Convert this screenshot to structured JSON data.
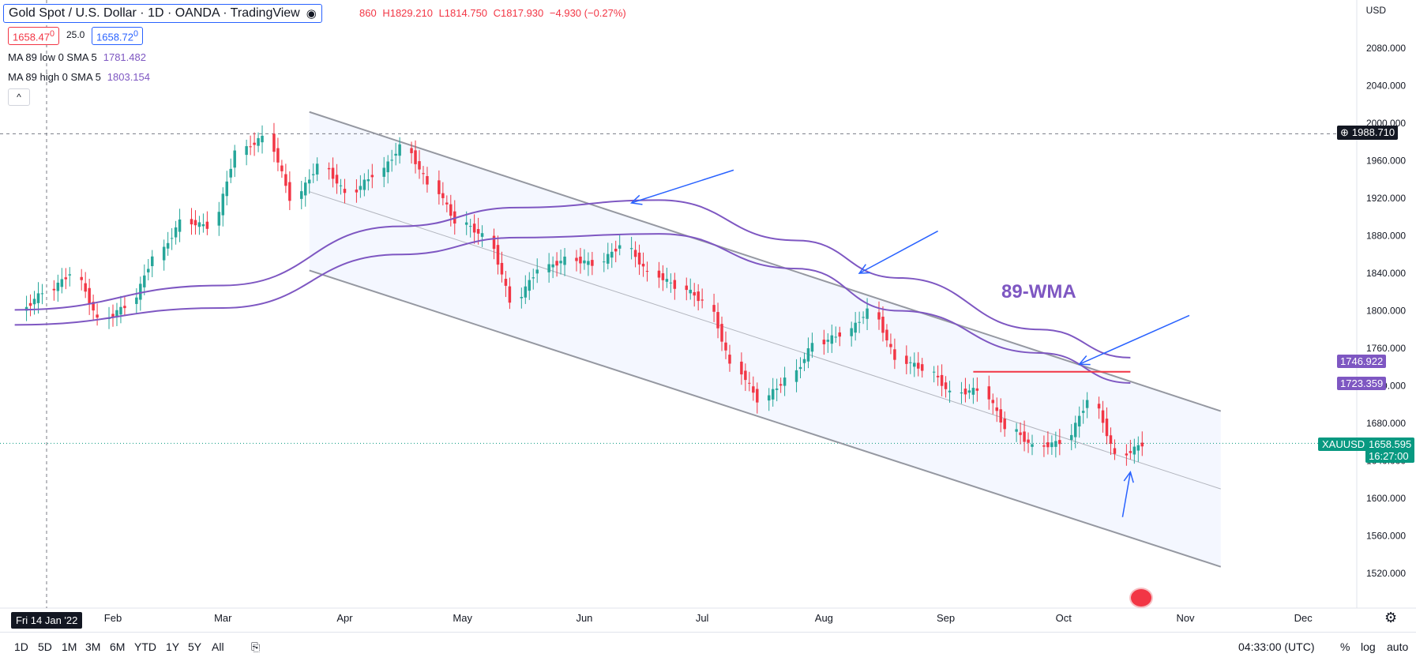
{
  "header": {
    "title": "Gold Spot / U.S. Dollar · 1D · OANDA · TradingView",
    "ohlc_prefix": "860",
    "high": "H1829.210",
    "low": "L1814.750",
    "close": "C1817.930",
    "change": "−4.930 (−0.27%)",
    "sell_price": "1658.47",
    "sell_sup": "0",
    "spread": "25.0",
    "buy_price": "1658.72",
    "buy_sup": "0"
  },
  "legend": {
    "ma_low_label": "MA 89 low 0 SMA 5",
    "ma_low_value": "1781.482",
    "ma_high_label": "MA 89 high 0 SMA 5",
    "ma_high_value": "1803.154"
  },
  "annotations": {
    "wma_text": "89-WMA"
  },
  "axis": {
    "currency": "USD",
    "crosshair_date": "Fri 14 Jan '22",
    "crosshair_price": "1988.710",
    "ma_high_tag": "1746.922",
    "ma_low_tag": "1723.359",
    "symbol_tag": "XAUUSD",
    "last_price": "1658.595",
    "countdown": "16:27:00"
  },
  "bottom": {
    "timeframes": [
      "1D",
      "5D",
      "1M",
      "3M",
      "6M",
      "YTD",
      "1Y",
      "5Y",
      "All"
    ],
    "time": "04:33:00 (UTC)",
    "pct": "%",
    "log": "log",
    "auto": "auto"
  },
  "colors": {
    "up": "#26a69a",
    "down": "#f23645",
    "ma": "#7e57c2",
    "channel": "#9598a1",
    "arrow": "#2962ff"
  },
  "chart_data": {
    "type": "candlestick",
    "title": "Gold Spot / U.S. Dollar · 1D · OANDA",
    "y_ticks": [
      1520,
      1560,
      1600,
      1640,
      1680,
      1720,
      1760,
      1800,
      1840,
      1880,
      1920,
      1960,
      2000,
      2040,
      2080
    ],
    "ylim": [
      1500,
      2110
    ],
    "x_ticks": [
      "Feb",
      "Mar",
      "Apr",
      "May",
      "Jun",
      "Jul",
      "Aug",
      "Sep",
      "Oct",
      "Nov",
      "Dec"
    ],
    "xlim": [
      "2022-01-07",
      "2022-12-28"
    ],
    "candles_weekly_close": [
      [
        "2022-01-10",
        1800,
        1820
      ],
      [
        "2022-01-17",
        1820,
        1840
      ],
      [
        "2022-01-24",
        1840,
        1790
      ],
      [
        "2022-01-31",
        1790,
        1805
      ],
      [
        "2022-02-07",
        1805,
        1858
      ],
      [
        "2022-02-14",
        1858,
        1895
      ],
      [
        "2022-02-21",
        1895,
        1890
      ],
      [
        "2022-02-28",
        1890,
        1970
      ],
      [
        "2022-03-07",
        1970,
        1985
      ],
      [
        "2022-03-14",
        1985,
        1920
      ],
      [
        "2022-03-21",
        1920,
        1955
      ],
      [
        "2022-03-28",
        1955,
        1925
      ],
      [
        "2022-04-04",
        1925,
        1945
      ],
      [
        "2022-04-11",
        1945,
        1975
      ],
      [
        "2022-04-18",
        1975,
        1935
      ],
      [
        "2022-04-25",
        1935,
        1895
      ],
      [
        "2022-05-02",
        1895,
        1880
      ],
      [
        "2022-05-09",
        1880,
        1810
      ],
      [
        "2022-05-16",
        1810,
        1845
      ],
      [
        "2022-05-23",
        1845,
        1855
      ],
      [
        "2022-05-30",
        1855,
        1850
      ],
      [
        "2022-06-06",
        1850,
        1870
      ],
      [
        "2022-06-13",
        1870,
        1840
      ],
      [
        "2022-06-20",
        1840,
        1826
      ],
      [
        "2022-06-27",
        1826,
        1810
      ],
      [
        "2022-07-04",
        1810,
        1742
      ],
      [
        "2022-07-11",
        1742,
        1705
      ],
      [
        "2022-07-18",
        1705,
        1727
      ],
      [
        "2022-07-25",
        1727,
        1765
      ],
      [
        "2022-08-01",
        1765,
        1775
      ],
      [
        "2022-08-08",
        1775,
        1800
      ],
      [
        "2022-08-15",
        1800,
        1748
      ],
      [
        "2022-08-22",
        1748,
        1738
      ],
      [
        "2022-08-29",
        1738,
        1712
      ],
      [
        "2022-09-05",
        1712,
        1716
      ],
      [
        "2022-09-12",
        1716,
        1675
      ],
      [
        "2022-09-19",
        1675,
        1655
      ],
      [
        "2022-09-26",
        1655,
        1660
      ],
      [
        "2022-10-03",
        1660,
        1705
      ],
      [
        "2022-10-10",
        1705,
        1645
      ],
      [
        "2022-10-17",
        1645,
        1658
      ]
    ],
    "series": [
      {
        "name": "MA 89 low 0 SMA 5",
        "points": [
          [
            "2022-01-07",
            1785
          ],
          [
            "2022-03-01",
            1803
          ],
          [
            "2022-04-15",
            1860
          ],
          [
            "2022-05-15",
            1878
          ],
          [
            "2022-06-20",
            1882
          ],
          [
            "2022-07-25",
            1845
          ],
          [
            "2022-08-20",
            1800
          ],
          [
            "2022-09-25",
            1755
          ],
          [
            "2022-10-18",
            1723
          ]
        ]
      },
      {
        "name": "MA 89 high 0 SMA 5",
        "points": [
          [
            "2022-01-07",
            1801
          ],
          [
            "2022-03-01",
            1827
          ],
          [
            "2022-04-15",
            1890
          ],
          [
            "2022-05-15",
            1910
          ],
          [
            "2022-06-20",
            1918
          ],
          [
            "2022-07-25",
            1875
          ],
          [
            "2022-08-20",
            1835
          ],
          [
            "2022-09-25",
            1780
          ],
          [
            "2022-10-18",
            1750
          ]
        ]
      }
    ],
    "channel": {
      "upper": [
        [
          "2022-03-23",
          2012
        ],
        [
          "2022-11-10",
          1693
        ]
      ],
      "middle": [
        [
          "2022-03-23",
          1927
        ],
        [
          "2022-11-10",
          1610
        ]
      ],
      "lower": [
        [
          "2022-03-23",
          1843
        ],
        [
          "2022-11-10",
          1527
        ]
      ]
    },
    "resistance": {
      "price": 1735,
      "from": "2022-09-08",
      "to": "2022-10-18"
    },
    "last_price": 1658.595
  }
}
